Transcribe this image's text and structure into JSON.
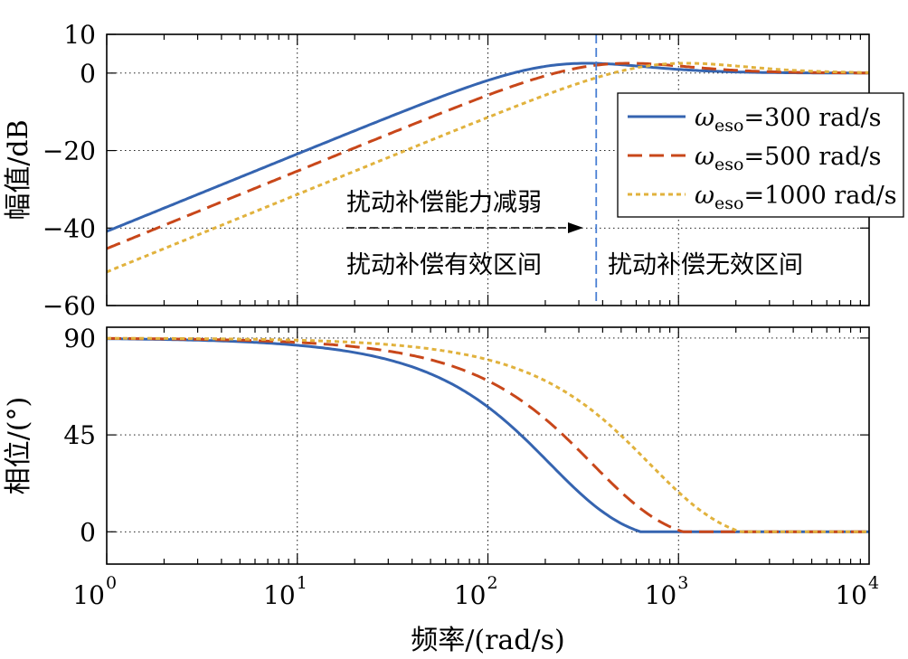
{
  "colors": {
    "s300": "#3564b0",
    "s500": "#c8471a",
    "s1000": "#e1b23d",
    "divider": "#4a7fd4",
    "axis": "#000000"
  },
  "chart_data": [
    {
      "type": "line",
      "xscale": "log",
      "xlim": [
        1,
        10000
      ],
      "ylim": [
        -60,
        10
      ],
      "yticks": [
        "10",
        "0",
        "−20",
        "−40",
        "−60"
      ],
      "ylabel": "幅值/dB",
      "grid": true,
      "legend_position": "right",
      "legend": {
        "symbol": "ω",
        "sub": "eso",
        "entries": [
          "=300 rad/s",
          "=500 rad/s",
          "=1000 rad/s"
        ]
      },
      "series": [
        {
          "name": "ωeso=300 rad/s",
          "w0": 300,
          "style": "solid"
        },
        {
          "name": "ωeso=500 rad/s",
          "w0": 500,
          "style": "dashed"
        },
        {
          "name": "ωeso=1000 rad/s",
          "w0": 1000,
          "style": "dotted"
        }
      ],
      "annotations": {
        "arrow_text": "扰动补偿能力减弱",
        "left_region": "扰动补偿有效区间",
        "right_region": "扰动补偿无效区间",
        "divider_x": 370
      }
    },
    {
      "type": "line",
      "xscale": "log",
      "xlim": [
        1,
        10000
      ],
      "ylim": [
        -15,
        95
      ],
      "yticks": [
        "90",
        "45",
        "0"
      ],
      "xticks": [
        {
          "base": "10",
          "exp": "0"
        },
        {
          "base": "10",
          "exp": "1"
        },
        {
          "base": "10",
          "exp": "2"
        },
        {
          "base": "10",
          "exp": "3"
        },
        {
          "base": "10",
          "exp": "4"
        }
      ],
      "xlabel": "频率/(rad/s)",
      "ylabel": "相位/(°)",
      "grid": true,
      "series": [
        {
          "name": "ωeso=300 rad/s",
          "w0": 300,
          "style": "solid"
        },
        {
          "name": "ωeso=500 rad/s",
          "w0": 500,
          "style": "dashed"
        },
        {
          "name": "ωeso=1000 rad/s",
          "w0": 1000,
          "style": "dotted"
        }
      ]
    }
  ]
}
